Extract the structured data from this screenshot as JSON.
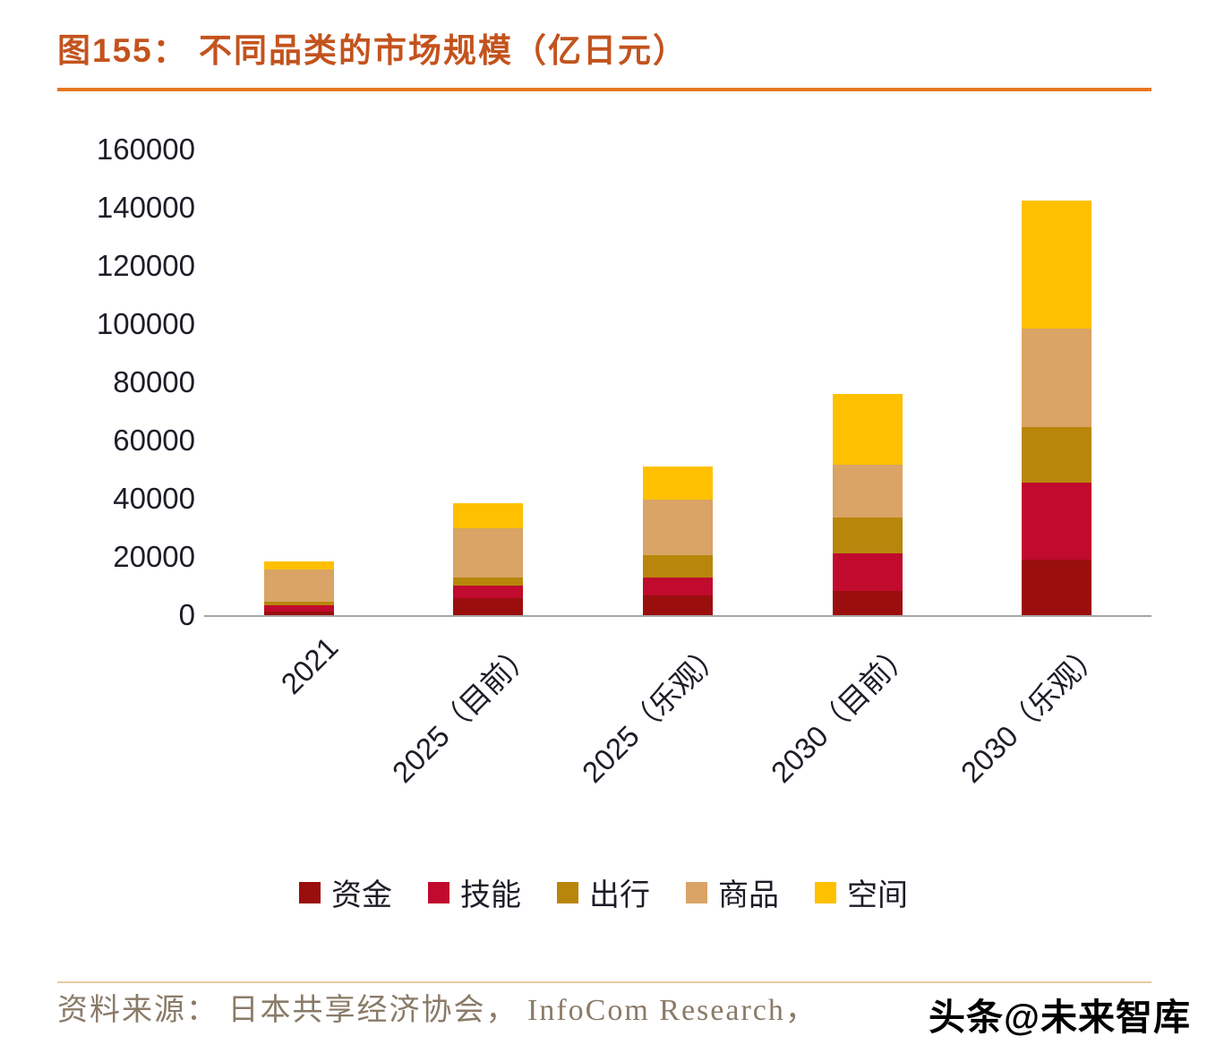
{
  "title": "图155： 不同品类的市场规模（亿日元）",
  "source": {
    "text": "资料来源： 日本共享经济协会，  InfoCom Research，"
  },
  "watermark": "头条@未来智库",
  "colors": {
    "background": "#FFFFFF",
    "title": "#C3531D",
    "rule": "#E87722",
    "axis_text": "#1D1D28",
    "axis_line": "#A6A6A6",
    "source_text": "#8A7B68",
    "footer_rule": "#EAC7A2",
    "watermark": "#000000"
  },
  "chart_data": {
    "type": "bar",
    "stacked": true,
    "title": "不同品类的市场规模（亿日元）",
    "categories": [
      "2021",
      "2025（目前）",
      "2025（乐观）",
      "2030（目前）",
      "2030（乐观）"
    ],
    "series": [
      {
        "name": "资金",
        "color": "#9A0E0E",
        "values": [
          1200,
          5800,
          6800,
          8300,
          19000
        ]
      },
      {
        "name": "技能",
        "color": "#C00A2E",
        "values": [
          2200,
          4300,
          6200,
          12900,
          26500
        ]
      },
      {
        "name": "出行",
        "color": "#B8860B",
        "values": [
          1200,
          2800,
          7700,
          12300,
          19000
        ]
      },
      {
        "name": "商品",
        "color": "#D9A465",
        "values": [
          11000,
          17000,
          19000,
          18200,
          34000
        ]
      },
      {
        "name": "空间",
        "color": "#FFC000",
        "values": [
          2800,
          8600,
          11300,
          24300,
          44000
        ]
      }
    ],
    "totals_estimated": [
      18400,
      38500,
      51000,
      76000,
      142500
    ],
    "xlabel": "",
    "ylabel": "",
    "ylim": [
      0,
      160000
    ],
    "ytick_step": 20000,
    "grid": false,
    "legend_position": "bottom",
    "x_label_rotation_deg": -45
  }
}
